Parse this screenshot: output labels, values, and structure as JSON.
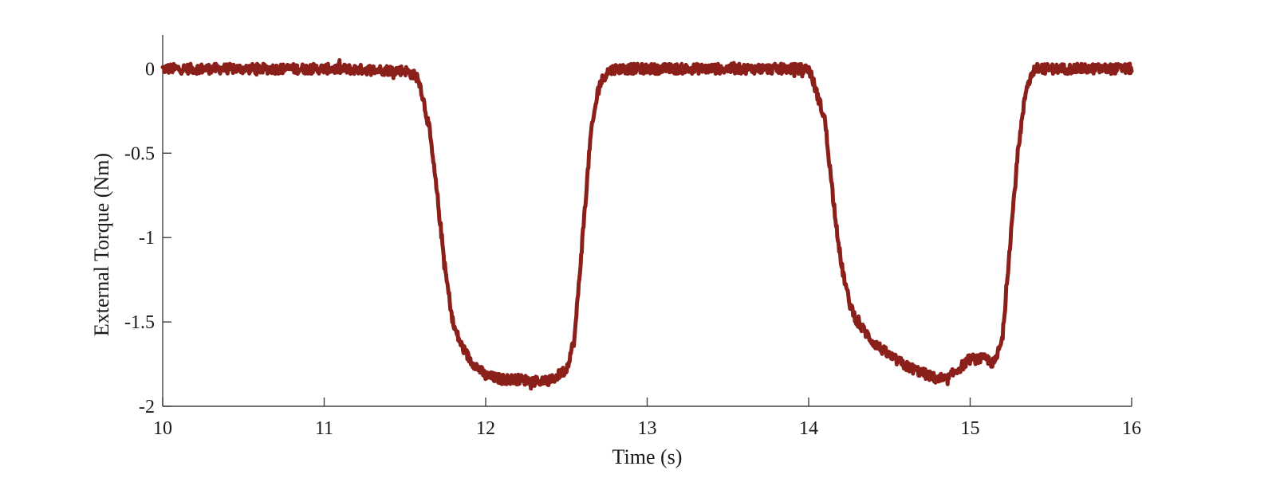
{
  "chart_data": {
    "type": "line",
    "title": "",
    "xlabel": "Time (s)",
    "ylabel": "External Torque (Nm)",
    "xlim": [
      10,
      16
    ],
    "ylim": [
      -2,
      0.2
    ],
    "xticks": [
      10,
      11,
      12,
      13,
      14,
      15,
      16
    ],
    "yticks": [
      0,
      -0.5,
      -1,
      -1.5,
      -2
    ],
    "xtick_labels": [
      "10",
      "11",
      "12",
      "13",
      "14",
      "15",
      "16"
    ],
    "ytick_labels": [
      "0",
      "-0.5",
      "-1",
      "-1.5",
      "-2"
    ],
    "grid": false,
    "legend": "none",
    "series": [
      {
        "color": "#8b1f1a",
        "x": [
          10.0,
          10.5,
          11.0,
          11.5,
          11.58,
          11.6,
          11.65,
          11.7,
          11.75,
          11.8,
          11.85,
          11.9,
          12.0,
          12.1,
          12.2,
          12.3,
          12.4,
          12.5,
          12.55,
          12.6,
          12.65,
          12.7,
          12.75,
          12.8,
          13.0,
          13.5,
          14.0,
          14.02,
          14.1,
          14.15,
          14.2,
          14.25,
          14.3,
          14.4,
          14.5,
          14.6,
          14.7,
          14.8,
          14.85,
          14.9,
          15.0,
          15.1,
          15.15,
          15.2,
          15.25,
          15.3,
          15.35,
          15.4,
          15.6,
          15.8,
          16.0
        ],
        "y": [
          0.0,
          0.0,
          0.0,
          -0.01,
          -0.05,
          -0.12,
          -0.35,
          -0.75,
          -1.2,
          -1.52,
          -1.64,
          -1.72,
          -1.82,
          -1.84,
          -1.84,
          -1.85,
          -1.85,
          -1.78,
          -1.6,
          -1.0,
          -0.4,
          -0.1,
          -0.02,
          0.0,
          0.0,
          0.0,
          0.0,
          -0.05,
          -0.3,
          -0.75,
          -1.15,
          -1.38,
          -1.5,
          -1.62,
          -1.7,
          -1.76,
          -1.8,
          -1.84,
          -1.85,
          -1.8,
          -1.72,
          -1.72,
          -1.75,
          -1.6,
          -1.0,
          -0.45,
          -0.1,
          0.0,
          0.0,
          0.0,
          0.0
        ],
        "noise_amplitude": 0.03
      }
    ]
  }
}
